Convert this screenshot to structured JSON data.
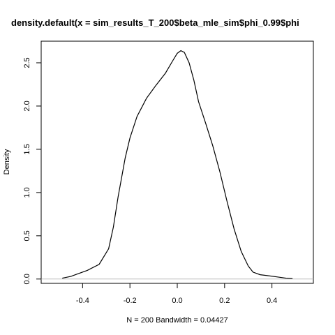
{
  "chart_data": {
    "type": "line",
    "title": "density.default(x = sim_results_T_200$beta_mle_sim$phi_0.99$phi",
    "xlabel": "N = 200   Bandwidth = 0.04427",
    "ylabel": "Density",
    "xlim": [
      -0.575,
      0.575
    ],
    "ylim": [
      -0.05,
      2.75
    ],
    "x_ticks": [
      -0.4,
      -0.2,
      0.0,
      0.2,
      0.4
    ],
    "x_tick_labels": [
      "-0.4",
      "-0.2",
      "0.0",
      "0.2",
      "0.4"
    ],
    "y_ticks": [
      0.0,
      0.5,
      1.0,
      1.5,
      2.0,
      2.5
    ],
    "y_tick_labels": [
      "0.0",
      "0.5",
      "1.0",
      "1.5",
      "2.0",
      "2.5"
    ],
    "baseline_color": "#bebebe",
    "line_color": "#000000",
    "series": [
      {
        "x": [
          -0.486,
          -0.45,
          -0.42,
          -0.38,
          -0.33,
          -0.29,
          -0.27,
          -0.25,
          -0.22,
          -0.2,
          -0.17,
          -0.13,
          -0.09,
          -0.05,
          -0.02,
          0.0,
          0.015,
          0.03,
          0.05,
          0.07,
          0.09,
          0.12,
          0.15,
          0.18,
          0.21,
          0.24,
          0.27,
          0.3,
          0.32,
          0.35,
          0.38,
          0.42,
          0.46,
          0.487
        ],
        "y": [
          0.01,
          0.03,
          0.06,
          0.1,
          0.17,
          0.35,
          0.6,
          0.95,
          1.4,
          1.63,
          1.88,
          2.09,
          2.24,
          2.38,
          2.52,
          2.61,
          2.64,
          2.62,
          2.5,
          2.3,
          2.05,
          1.8,
          1.54,
          1.24,
          0.9,
          0.58,
          0.32,
          0.15,
          0.08,
          0.05,
          0.04,
          0.025,
          0.01,
          0.005
        ]
      }
    ]
  }
}
